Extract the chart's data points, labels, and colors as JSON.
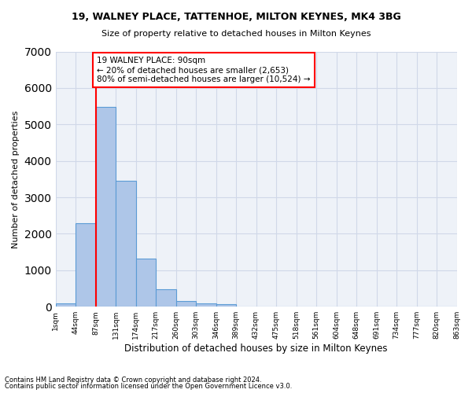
{
  "title1": "19, WALNEY PLACE, TATTENHOE, MILTON KEYNES, MK4 3BG",
  "title2": "Size of property relative to detached houses in Milton Keynes",
  "xlabel": "Distribution of detached houses by size in Milton Keynes",
  "ylabel": "Number of detached properties",
  "footnote1": "Contains HM Land Registry data © Crown copyright and database right 2024.",
  "footnote2": "Contains public sector information licensed under the Open Government Licence v3.0.",
  "bar_values": [
    80,
    2280,
    5480,
    3450,
    1310,
    470,
    160,
    90,
    60,
    0,
    0,
    0,
    0,
    0,
    0,
    0,
    0,
    0,
    0,
    0
  ],
  "bin_labels": [
    "1sqm",
    "44sqm",
    "87sqm",
    "131sqm",
    "174sqm",
    "217sqm",
    "260sqm",
    "303sqm",
    "346sqm",
    "389sqm",
    "432sqm",
    "475sqm",
    "518sqm",
    "561sqm",
    "604sqm",
    "648sqm",
    "691sqm",
    "734sqm",
    "777sqm",
    "820sqm",
    "863sqm"
  ],
  "bar_color": "#aec6e8",
  "bar_edge_color": "#5b9bd5",
  "grid_color": "#d0d8e8",
  "bg_color": "#eef2f8",
  "annotation_text": "19 WALNEY PLACE: 90sqm\n← 20% of detached houses are smaller (2,653)\n80% of semi-detached houses are larger (10,524) →",
  "annotation_box_color": "white",
  "annotation_box_edge": "red",
  "ylim": [
    0,
    7000
  ],
  "yticks": [
    0,
    1000,
    2000,
    3000,
    4000,
    5000,
    6000,
    7000
  ]
}
